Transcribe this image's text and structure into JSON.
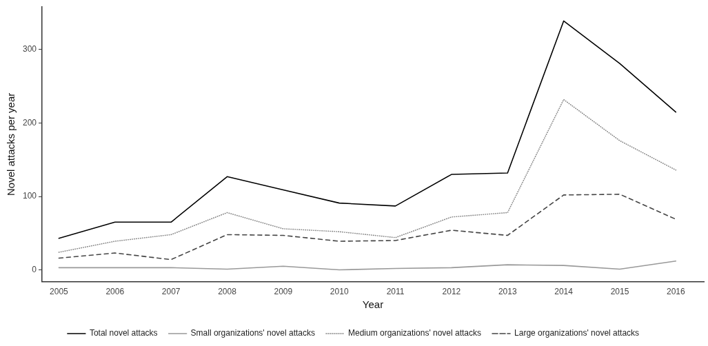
{
  "chart_data": {
    "type": "line",
    "xlabel": "Year",
    "ylabel": "Novel attacks per year",
    "x": [
      2005,
      2006,
      2007,
      2008,
      2009,
      2010,
      2011,
      2012,
      2013,
      2014,
      2015,
      2016
    ],
    "xlim": [
      2004.7,
      2016.5
    ],
    "xticks": [
      2005,
      2006,
      2007,
      2008,
      2009,
      2010,
      2011,
      2012,
      2013,
      2014,
      2015,
      2016
    ],
    "ylim": [
      -16,
      358
    ],
    "yticks": [
      0,
      100,
      200,
      300
    ],
    "grid": false,
    "legend": "bottom",
    "marker": "none",
    "series": [
      {
        "name": "Total novel attacks",
        "color": "#000000",
        "line_style": "solid",
        "values": [
          43,
          65,
          65,
          127,
          109,
          91,
          87,
          130,
          132,
          339,
          281,
          215
        ]
      },
      {
        "name": "Small organizations' novel attacks",
        "color": "#999999",
        "line_style": "solid",
        "values": [
          3,
          3,
          3,
          1,
          5,
          0,
          2,
          3,
          7,
          6,
          1,
          12
        ]
      },
      {
        "name": "Medium organizations' novel attacks",
        "color": "#888888",
        "line_style": "dotted",
        "values": [
          24,
          39,
          48,
          78,
          56,
          52,
          44,
          72,
          78,
          232,
          176,
          136
        ]
      },
      {
        "name": "Large organizations' novel attacks",
        "color": "#444444",
        "line_style": "dashed",
        "values": [
          16,
          23,
          14,
          48,
          47,
          39,
          40,
          54,
          47,
          102,
          103,
          69
        ]
      }
    ]
  }
}
